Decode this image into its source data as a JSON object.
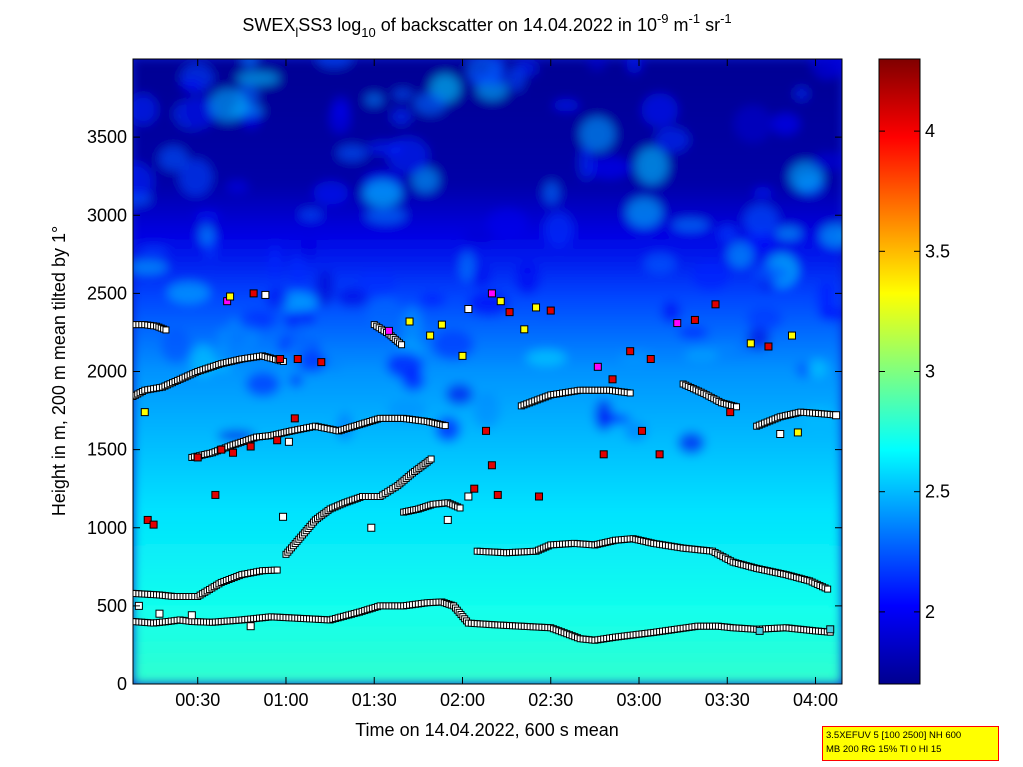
{
  "chart_data": {
    "type": "heatmap",
    "title": {
      "parts": [
        {
          "t": "SWEX",
          "s": "n"
        },
        {
          "t": "l",
          "s": "sub"
        },
        {
          "t": "SS3 log",
          "s": "n"
        },
        {
          "t": "10",
          "s": "sub"
        },
        {
          "t": " of backscatter on 14.04.2022 in 10",
          "s": "n"
        },
        {
          "t": "-9",
          "s": "sup"
        },
        {
          "t": " m",
          "s": "n"
        },
        {
          "t": "-1",
          "s": "sup"
        },
        {
          "t": " sr",
          "s": "n"
        },
        {
          "t": "-1",
          "s": "sup"
        }
      ]
    },
    "xlabel": "Time on 14.04.2022, 600 s mean",
    "ylabel": "Height in m, 200 m mean tilted by 1°",
    "xlim_minutes": [
      8,
      249
    ],
    "ylim": [
      0,
      4000
    ],
    "x_ticks": [
      {
        "label": "00:30",
        "minutes": 30
      },
      {
        "label": "01:00",
        "minutes": 60
      },
      {
        "label": "01:30",
        "minutes": 90
      },
      {
        "label": "02:00",
        "minutes": 120
      },
      {
        "label": "02:30",
        "minutes": 150
      },
      {
        "label": "03:00",
        "minutes": 180
      },
      {
        "label": "03:30",
        "minutes": 210
      },
      {
        "label": "04:00",
        "minutes": 240
      }
    ],
    "y_ticks": [
      0,
      500,
      1000,
      1500,
      2000,
      2500,
      3000,
      3500
    ],
    "colorbar": {
      "clim": [
        1.7,
        4.3
      ],
      "ticks": [
        2,
        2.5,
        3,
        3.5,
        4
      ],
      "colormap": "jet"
    },
    "layers": [
      {
        "name": "layer-1",
        "points": [
          [
            8,
            400
          ],
          [
            15,
            390
          ],
          [
            20,
            400
          ],
          [
            24,
            410
          ],
          [
            28,
            400
          ],
          [
            35,
            395
          ],
          [
            45,
            410
          ],
          [
            55,
            430
          ],
          [
            65,
            420
          ],
          [
            75,
            410
          ],
          [
            85,
            460
          ],
          [
            92,
            500
          ],
          [
            100,
            500
          ],
          [
            108,
            520
          ],
          [
            113,
            525
          ],
          [
            117,
            500
          ],
          [
            122,
            390
          ],
          [
            130,
            380
          ],
          [
            140,
            370
          ],
          [
            150,
            360
          ],
          [
            160,
            290
          ],
          [
            165,
            280
          ],
          [
            172,
            300
          ],
          [
            185,
            330
          ],
          [
            200,
            370
          ],
          [
            207,
            370
          ],
          [
            212,
            360
          ],
          [
            220,
            350
          ],
          [
            230,
            360
          ],
          [
            240,
            340
          ],
          [
            246,
            330
          ]
        ]
      },
      {
        "name": "layer-2",
        "points": [
          [
            8,
            580
          ],
          [
            17,
            570
          ],
          [
            22,
            560
          ],
          [
            30,
            560
          ],
          [
            38,
            650
          ],
          [
            45,
            700
          ],
          [
            52,
            725
          ],
          [
            58,
            730
          ]
        ]
      },
      {
        "name": "layer-3",
        "points": [
          [
            125,
            850
          ],
          [
            135,
            840
          ],
          [
            145,
            850
          ],
          [
            150,
            890
          ],
          [
            158,
            900
          ],
          [
            165,
            890
          ],
          [
            172,
            920
          ],
          [
            178,
            930
          ],
          [
            185,
            900
          ],
          [
            195,
            870
          ],
          [
            205,
            850
          ],
          [
            212,
            780
          ],
          [
            220,
            740
          ],
          [
            230,
            700
          ],
          [
            238,
            660
          ],
          [
            245,
            600
          ]
        ]
      },
      {
        "name": "layer-4",
        "points": [
          [
            60,
            830
          ],
          [
            65,
            940
          ],
          [
            70,
            1050
          ],
          [
            75,
            1120
          ],
          [
            80,
            1160
          ],
          [
            86,
            1200
          ],
          [
            92,
            1200
          ],
          [
            98,
            1270
          ],
          [
            103,
            1350
          ],
          [
            108,
            1420
          ],
          [
            110,
            1450
          ]
        ]
      },
      {
        "name": "layer-5",
        "points": [
          [
            100,
            1100
          ],
          [
            105,
            1120
          ],
          [
            110,
            1150
          ],
          [
            115,
            1160
          ],
          [
            120,
            1120
          ]
        ]
      },
      {
        "name": "layer-6",
        "points": [
          [
            28,
            1450
          ],
          [
            35,
            1480
          ],
          [
            42,
            1530
          ],
          [
            50,
            1580
          ],
          [
            55,
            1590
          ],
          [
            62,
            1620
          ],
          [
            70,
            1650
          ],
          [
            78,
            1620
          ],
          [
            85,
            1660
          ],
          [
            92,
            1700
          ],
          [
            100,
            1700
          ],
          [
            108,
            1680
          ],
          [
            115,
            1650
          ]
        ]
      },
      {
        "name": "layer-7",
        "points": [
          [
            8,
            1840
          ],
          [
            12,
            1880
          ],
          [
            18,
            1900
          ],
          [
            24,
            1950
          ],
          [
            30,
            2000
          ],
          [
            38,
            2050
          ],
          [
            45,
            2080
          ],
          [
            52,
            2100
          ],
          [
            60,
            2060
          ]
        ]
      },
      {
        "name": "layer-8",
        "points": [
          [
            140,
            1780
          ],
          [
            150,
            1850
          ],
          [
            160,
            1880
          ],
          [
            170,
            1880
          ],
          [
            178,
            1860
          ]
        ]
      },
      {
        "name": "layer-9",
        "points": [
          [
            8,
            2300
          ],
          [
            12,
            2300
          ],
          [
            16,
            2290
          ],
          [
            20,
            2260
          ]
        ]
      },
      {
        "name": "layer-10",
        "points": [
          [
            90,
            2300
          ],
          [
            95,
            2240
          ],
          [
            100,
            2160
          ]
        ]
      },
      {
        "name": "layer-11",
        "points": [
          [
            195,
            1920
          ],
          [
            202,
            1860
          ],
          [
            208,
            1800
          ],
          [
            214,
            1770
          ]
        ]
      },
      {
        "name": "layer-12",
        "points": [
          [
            220,
            1650
          ],
          [
            228,
            1710
          ],
          [
            235,
            1740
          ],
          [
            242,
            1730
          ],
          [
            248,
            1720
          ]
        ]
      }
    ],
    "markers": [
      {
        "x": 13,
        "y": 1050,
        "c": "r"
      },
      {
        "x": 15,
        "y": 1020,
        "c": "r"
      },
      {
        "x": 30,
        "y": 1450,
        "c": "r"
      },
      {
        "x": 38,
        "y": 1500,
        "c": "r"
      },
      {
        "x": 42,
        "y": 1480,
        "c": "r"
      },
      {
        "x": 48,
        "y": 1520,
        "c": "r"
      },
      {
        "x": 57,
        "y": 1560,
        "c": "r"
      },
      {
        "x": 63,
        "y": 1700,
        "c": "r"
      },
      {
        "x": 58,
        "y": 2080,
        "c": "r"
      },
      {
        "x": 40,
        "y": 2450,
        "c": "m"
      },
      {
        "x": 41,
        "y": 2480,
        "c": "y"
      },
      {
        "x": 49,
        "y": 2500,
        "c": "r"
      },
      {
        "x": 53,
        "y": 2490,
        "c": "w"
      },
      {
        "x": 72,
        "y": 2060,
        "c": "r"
      },
      {
        "x": 64,
        "y": 2080,
        "c": "r"
      },
      {
        "x": 95,
        "y": 2260,
        "c": "m"
      },
      {
        "x": 102,
        "y": 2320,
        "c": "y"
      },
      {
        "x": 109,
        "y": 2230,
        "c": "y"
      },
      {
        "x": 113,
        "y": 2300,
        "c": "y"
      },
      {
        "x": 120,
        "y": 2100,
        "c": "y"
      },
      {
        "x": 122,
        "y": 2400,
        "c": "w"
      },
      {
        "x": 130,
        "y": 2500,
        "c": "m"
      },
      {
        "x": 133,
        "y": 2450,
        "c": "y"
      },
      {
        "x": 136,
        "y": 2380,
        "c": "r"
      },
      {
        "x": 141,
        "y": 2270,
        "c": "y"
      },
      {
        "x": 145,
        "y": 2410,
        "c": "y"
      },
      {
        "x": 150,
        "y": 2390,
        "c": "r"
      },
      {
        "x": 166,
        "y": 2030,
        "c": "m"
      },
      {
        "x": 171,
        "y": 1950,
        "c": "r"
      },
      {
        "x": 177,
        "y": 2130,
        "c": "r"
      },
      {
        "x": 184,
        "y": 2080,
        "c": "r"
      },
      {
        "x": 193,
        "y": 2310,
        "c": "m"
      },
      {
        "x": 199,
        "y": 2330,
        "c": "r"
      },
      {
        "x": 206,
        "y": 2430,
        "c": "r"
      },
      {
        "x": 218,
        "y": 2180,
        "c": "y"
      },
      {
        "x": 224,
        "y": 2160,
        "c": "r"
      },
      {
        "x": 232,
        "y": 2230,
        "c": "y"
      },
      {
        "x": 211,
        "y": 1740,
        "c": "r"
      },
      {
        "x": 181,
        "y": 1620,
        "c": "r"
      },
      {
        "x": 187,
        "y": 1470,
        "c": "r"
      },
      {
        "x": 168,
        "y": 1470,
        "c": "r"
      },
      {
        "x": 128,
        "y": 1620,
        "c": "r"
      },
      {
        "x": 130,
        "y": 1400,
        "c": "r"
      },
      {
        "x": 124,
        "y": 1250,
        "c": "r"
      },
      {
        "x": 132,
        "y": 1210,
        "c": "r"
      },
      {
        "x": 146,
        "y": 1200,
        "c": "r"
      },
      {
        "x": 36,
        "y": 1210,
        "c": "r"
      },
      {
        "x": 12,
        "y": 1740,
        "c": "y"
      },
      {
        "x": 228,
        "y": 1600,
        "c": "w"
      },
      {
        "x": 234,
        "y": 1610,
        "c": "y"
      },
      {
        "x": 59,
        "y": 1070,
        "c": "w"
      },
      {
        "x": 89,
        "y": 1000,
        "c": "w"
      },
      {
        "x": 115,
        "y": 1050,
        "c": "w"
      },
      {
        "x": 122,
        "y": 1200,
        "c": "w"
      },
      {
        "x": 61,
        "y": 1550,
        "c": "w"
      },
      {
        "x": 10,
        "y": 500,
        "c": "w"
      },
      {
        "x": 17,
        "y": 450,
        "c": "w"
      },
      {
        "x": 48,
        "y": 370,
        "c": "w"
      },
      {
        "x": 221,
        "y": 340,
        "c": "c"
      },
      {
        "x": 245,
        "y": 350,
        "c": "c"
      },
      {
        "x": 247,
        "y": 1720,
        "c": "w"
      },
      {
        "x": 28,
        "y": 440,
        "c": "w"
      }
    ]
  },
  "note_box": {
    "line1": "3.5XEFUV 5 [100 2500] NH 600",
    "line2": "MB 200 RG 15% TI 0 HI 15"
  }
}
